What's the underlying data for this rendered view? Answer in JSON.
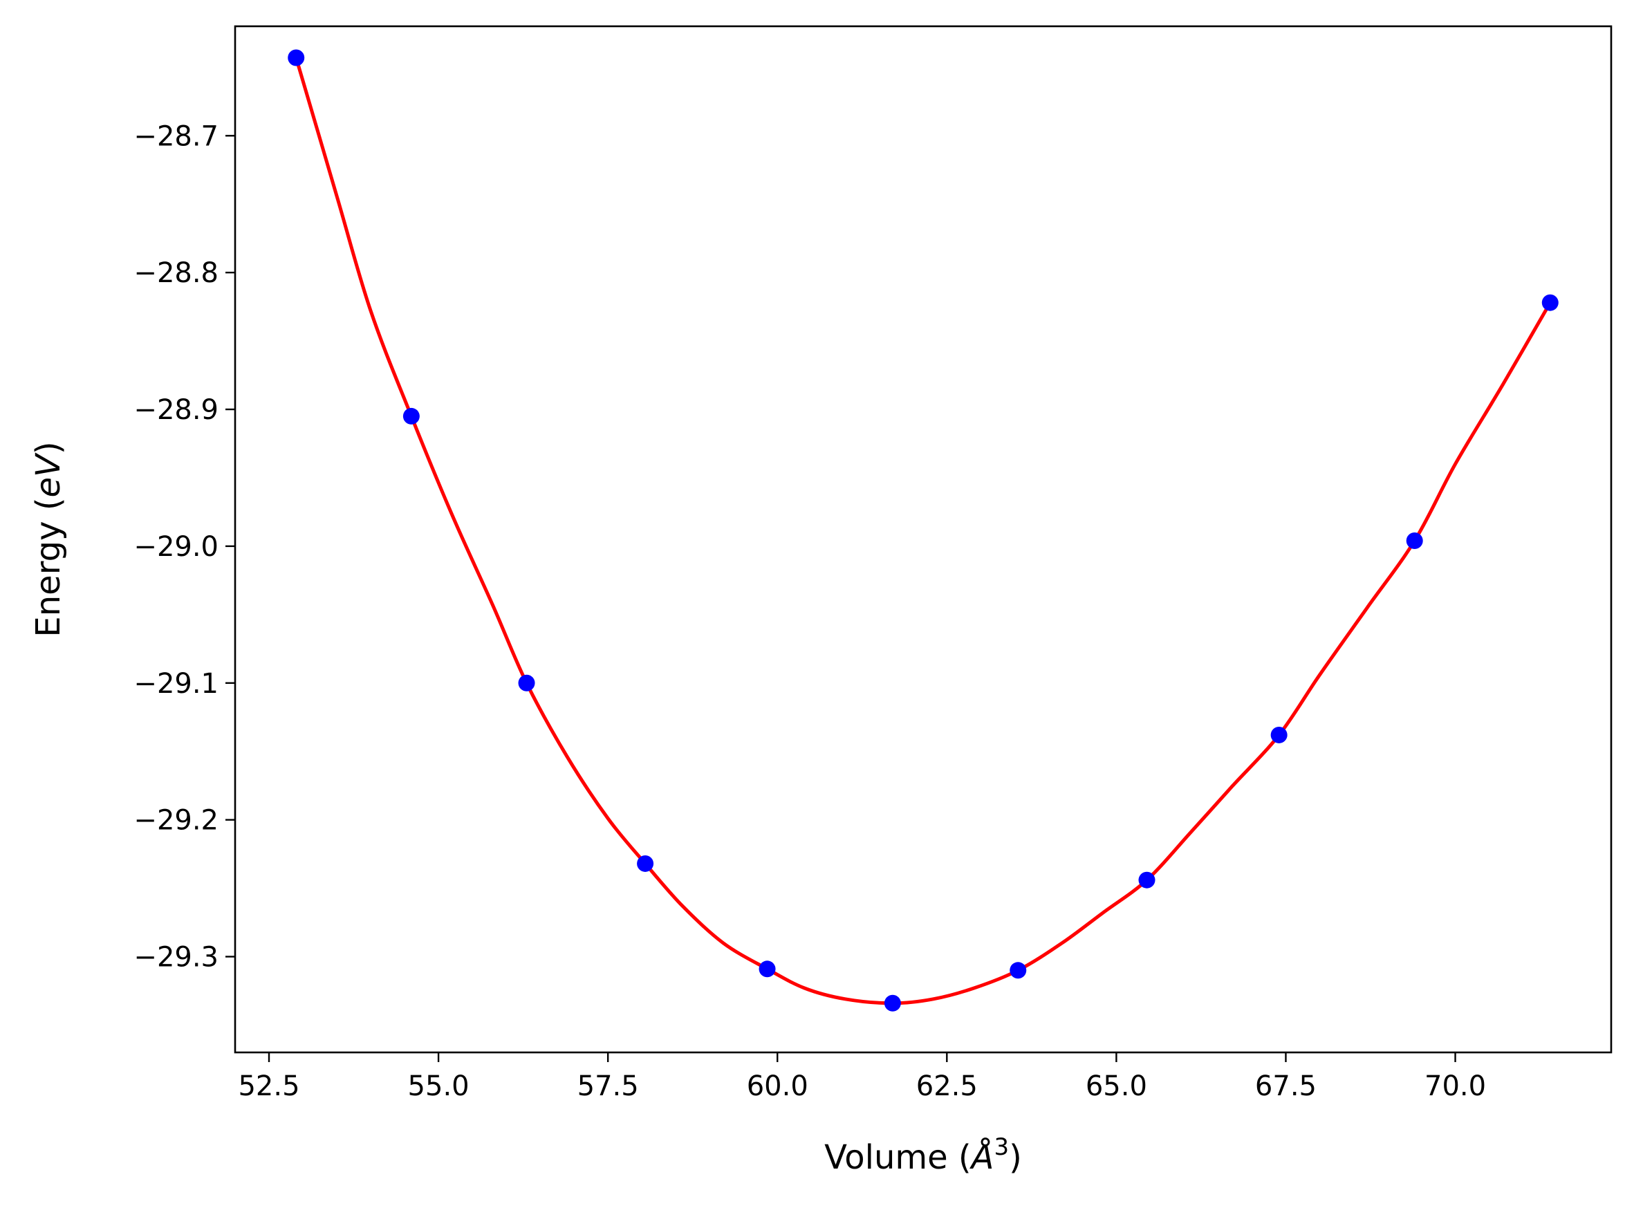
{
  "chart_data": {
    "type": "scatter",
    "xlabel": {
      "prefix": "Volume (",
      "symbol": "Å",
      "sup": "3",
      "suffix": ")"
    },
    "ylabel": {
      "prefix": "Energy (",
      "italic": "eV",
      "suffix": ")"
    },
    "xlim": [
      52.0,
      72.3
    ],
    "ylim": [
      -29.37,
      -28.62
    ],
    "x_ticks": [
      52.5,
      55.0,
      57.5,
      60.0,
      62.5,
      65.0,
      67.5,
      70.0
    ],
    "x_tick_labels": [
      "52.5",
      "55.0",
      "57.5",
      "60.0",
      "62.5",
      "65.0",
      "67.5",
      "70.0"
    ],
    "y_ticks": [
      -28.7,
      -28.8,
      -28.9,
      -29.0,
      -29.1,
      -29.2,
      -29.3
    ],
    "y_tick_labels": [
      "−28.7",
      "−28.8",
      "−28.9",
      "−29.0",
      "−29.1",
      "−29.2",
      "−29.3"
    ],
    "grid": false,
    "series": [
      {
        "kind": "points",
        "color": "#0000ff",
        "x": [
          52.9,
          54.6,
          56.3,
          58.05,
          59.85,
          61.7,
          63.55,
          65.45,
          67.4,
          69.4,
          71.4
        ],
        "y": [
          -28.643,
          -28.905,
          -29.1,
          -29.232,
          -29.309,
          -29.334,
          -29.31,
          -29.244,
          -29.138,
          -28.996,
          -28.822
        ]
      },
      {
        "kind": "fit-curve",
        "color": "#ff0000",
        "x": [
          52.9,
          53.5,
          54.0,
          54.6,
          55.2,
          55.8,
          56.3,
          56.9,
          57.5,
          58.05,
          58.6,
          59.2,
          59.85,
          60.4,
          61.0,
          61.7,
          62.3,
          62.9,
          63.55,
          64.2,
          64.8,
          65.45,
          66.1,
          66.7,
          67.4,
          68.0,
          68.7,
          69.4,
          70.0,
          70.7,
          71.4
        ],
        "y": [
          -28.643,
          -28.744,
          -28.828,
          -28.905,
          -28.977,
          -29.043,
          -29.1,
          -29.154,
          -29.199,
          -29.232,
          -29.263,
          -29.29,
          -29.309,
          -29.323,
          -29.331,
          -29.334,
          -29.331,
          -29.323,
          -29.31,
          -29.29,
          -29.268,
          -29.244,
          -29.209,
          -29.176,
          -29.138,
          -29.094,
          -29.045,
          -28.996,
          -28.94,
          -28.882,
          -28.822
        ]
      }
    ]
  }
}
